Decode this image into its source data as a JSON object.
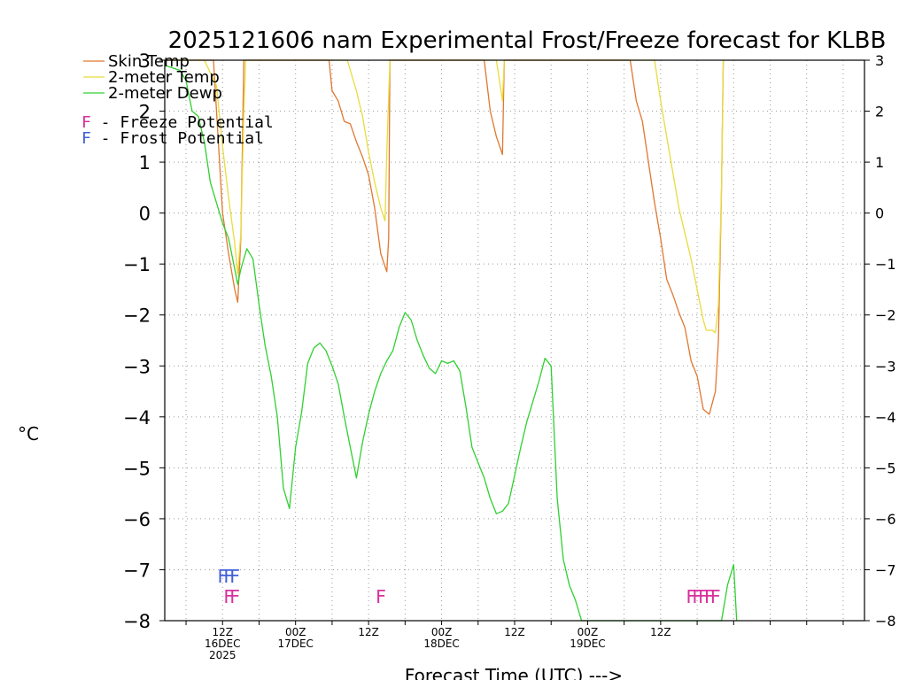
{
  "chart_data": {
    "type": "line",
    "title": "2025121606 nam Experimental Frost/Freeze forecast for KLBB",
    "ylabel": "°C",
    "xlabel": "Forecast Time (UTC) --->",
    "ylim": [
      -8,
      3
    ],
    "xlim_hours": [
      -9.5,
      105.5
    ],
    "y_ticks": [
      -8,
      -7,
      -6,
      -5,
      -4,
      -3,
      -2,
      -1,
      0,
      1,
      2,
      3
    ],
    "x_ticks": [
      {
        "hour": 0,
        "line1": "12Z",
        "line2": "16DEC",
        "line3": "2025"
      },
      {
        "hour": 12,
        "line1": "00Z",
        "line2": "17DEC",
        "line3": ""
      },
      {
        "hour": 24,
        "line1": "12Z",
        "line2": "",
        "line3": ""
      },
      {
        "hour": 36,
        "line1": "00Z",
        "line2": "18DEC",
        "line3": ""
      },
      {
        "hour": 48,
        "line1": "12Z",
        "line2": "",
        "line3": ""
      },
      {
        "hour": 60,
        "line1": "00Z",
        "line2": "19DEC",
        "line3": ""
      },
      {
        "hour": 72,
        "line1": "12Z",
        "line2": "",
        "line3": ""
      }
    ],
    "grid": true,
    "legend": [
      {
        "label": "Skin Temp",
        "color": "#e07830"
      },
      {
        "label": "2-meter Temp",
        "color": "#e8dc3c"
      },
      {
        "label": "2-meter Dewp",
        "color": "#30d030"
      }
    ],
    "potential_legend": [
      {
        "label": "F - Freeze Potential",
        "color": "#d8309c"
      },
      {
        "label": "F - Frost Potential",
        "color": "#4060d8"
      }
    ],
    "series": [
      {
        "name": "Skin Temp",
        "color": "#e07830",
        "points": [
          [
            -9.5,
            3
          ],
          [
            -1.5,
            3
          ],
          [
            0,
            0
          ],
          [
            1,
            -0.8
          ],
          [
            2,
            -1.5
          ],
          [
            2.5,
            -1.75
          ],
          [
            3,
            -0.5
          ],
          [
            3.5,
            3
          ],
          [
            17.5,
            3
          ],
          [
            18,
            2.4
          ],
          [
            19,
            2.2
          ],
          [
            20,
            1.8
          ],
          [
            21,
            1.75
          ],
          [
            22,
            1.4
          ],
          [
            23,
            1.1
          ],
          [
            24,
            0.75
          ],
          [
            25,
            0.1
          ],
          [
            26,
            -0.8
          ],
          [
            27,
            -1.15
          ],
          [
            27.3,
            -0.5
          ],
          [
            27.5,
            3
          ],
          [
            43,
            3
          ],
          [
            44,
            2.0
          ],
          [
            45,
            1.5
          ],
          [
            46,
            1.15
          ],
          [
            46.3,
            3
          ],
          [
            67,
            3
          ],
          [
            68,
            2.2
          ],
          [
            69,
            1.8
          ],
          [
            70,
            1.0
          ],
          [
            71,
            0.2
          ],
          [
            72,
            -0.5
          ],
          [
            73,
            -1.3
          ],
          [
            74,
            -1.6
          ],
          [
            75,
            -1.95
          ],
          [
            76,
            -2.25
          ],
          [
            77,
            -2.9
          ],
          [
            78,
            -3.2
          ],
          [
            79,
            -3.85
          ],
          [
            80,
            -3.95
          ],
          [
            81,
            -3.5
          ],
          [
            81.5,
            -2.5
          ],
          [
            82,
            0.5
          ],
          [
            82.3,
            3
          ]
        ]
      },
      {
        "name": "2-meter Temp",
        "color": "#e8dc3c",
        "points": [
          [
            -9.5,
            3
          ],
          [
            -3,
            3
          ],
          [
            -1,
            2.5
          ],
          [
            0,
            1.3
          ],
          [
            1,
            0.3
          ],
          [
            2,
            -0.6
          ],
          [
            2.5,
            -1.2
          ],
          [
            3,
            -0.4
          ],
          [
            3.5,
            2.0
          ],
          [
            3.8,
            3
          ],
          [
            20.5,
            3
          ],
          [
            22,
            2.4
          ],
          [
            23,
            1.9
          ],
          [
            24,
            1.2
          ],
          [
            25,
            0.6
          ],
          [
            26,
            0.1
          ],
          [
            26.7,
            -0.15
          ],
          [
            27,
            1.2
          ],
          [
            27.5,
            3
          ],
          [
            45,
            3
          ],
          [
            46,
            2.2
          ],
          [
            46.3,
            3
          ],
          [
            71,
            3
          ],
          [
            72,
            2.2
          ],
          [
            73,
            1.5
          ],
          [
            74,
            0.8
          ],
          [
            75,
            0.1
          ],
          [
            76,
            -0.4
          ],
          [
            77,
            -0.9
          ],
          [
            78,
            -1.5
          ],
          [
            79,
            -2.1
          ],
          [
            79.5,
            -2.3
          ],
          [
            80,
            -2.3
          ],
          [
            80.5,
            -2.3
          ],
          [
            81,
            -2.35
          ],
          [
            81.5,
            -1.8
          ],
          [
            82,
            0.5
          ],
          [
            82.3,
            3
          ]
        ]
      },
      {
        "name": "2-meter Dewp",
        "color": "#30d030",
        "points": [
          [
            -9.5,
            2.9
          ],
          [
            -7,
            2.8
          ],
          [
            -6,
            2.6
          ],
          [
            -5,
            2.0
          ],
          [
            -4,
            1.9
          ],
          [
            -3,
            1.4
          ],
          [
            -2,
            0.6
          ],
          [
            -1,
            0.2
          ],
          [
            0,
            -0.2
          ],
          [
            1,
            -0.5
          ],
          [
            2,
            -1.1
          ],
          [
            2.5,
            -1.4
          ],
          [
            3,
            -1.1
          ],
          [
            4,
            -0.7
          ],
          [
            5,
            -0.9
          ],
          [
            6,
            -1.8
          ],
          [
            7,
            -2.6
          ],
          [
            8,
            -3.2
          ],
          [
            9,
            -4.0
          ],
          [
            10,
            -5.4
          ],
          [
            11,
            -5.8
          ],
          [
            12,
            -4.6
          ],
          [
            13,
            -3.9
          ],
          [
            14,
            -2.95
          ],
          [
            15,
            -2.65
          ],
          [
            16,
            -2.55
          ],
          [
            17,
            -2.7
          ],
          [
            18,
            -3.0
          ],
          [
            19,
            -3.35
          ],
          [
            20,
            -4.0
          ],
          [
            21,
            -4.6
          ],
          [
            22,
            -5.2
          ],
          [
            23,
            -4.5
          ],
          [
            24,
            -3.95
          ],
          [
            25,
            -3.5
          ],
          [
            26,
            -3.15
          ],
          [
            27,
            -2.9
          ],
          [
            28,
            -2.7
          ],
          [
            29,
            -2.25
          ],
          [
            30,
            -1.95
          ],
          [
            31,
            -2.1
          ],
          [
            32,
            -2.5
          ],
          [
            33,
            -2.8
          ],
          [
            34,
            -3.05
          ],
          [
            35,
            -3.15
          ],
          [
            36,
            -2.9
          ],
          [
            37,
            -2.95
          ],
          [
            38,
            -2.9
          ],
          [
            39,
            -3.1
          ],
          [
            40,
            -3.8
          ],
          [
            41,
            -4.6
          ],
          [
            42,
            -4.9
          ],
          [
            43,
            -5.2
          ],
          [
            44,
            -5.6
          ],
          [
            45,
            -5.9
          ],
          [
            46,
            -5.85
          ],
          [
            47,
            -5.7
          ],
          [
            48,
            -5.15
          ],
          [
            49,
            -4.6
          ],
          [
            50,
            -4.1
          ],
          [
            51,
            -3.7
          ],
          [
            52,
            -3.3
          ],
          [
            53,
            -2.85
          ],
          [
            54,
            -3.0
          ],
          [
            55,
            -5.6
          ],
          [
            56,
            -6.8
          ],
          [
            57,
            -7.3
          ],
          [
            58,
            -7.6
          ],
          [
            59,
            -8.0
          ],
          [
            82,
            -8.0
          ],
          [
            83,
            -7.3
          ],
          [
            84,
            -6.9
          ],
          [
            84.5,
            -8.0
          ]
        ]
      }
    ],
    "freeze_markers": [
      {
        "hour": 1.0,
        "label": "F"
      },
      {
        "hour": 2.0,
        "label": "F"
      },
      {
        "hour": 26.0,
        "label": "F"
      },
      {
        "hour": 77.0,
        "label": "F"
      },
      {
        "hour": 78.0,
        "label": "F"
      },
      {
        "hour": 79.0,
        "label": "F"
      },
      {
        "hour": 80.0,
        "label": "F"
      },
      {
        "hour": 81.0,
        "label": "F"
      }
    ],
    "frost_markers": [
      {
        "hour": 0.0,
        "label": "F"
      },
      {
        "hour": 1.0,
        "label": "F"
      },
      {
        "hour": 2.0,
        "label": "F"
      }
    ]
  }
}
